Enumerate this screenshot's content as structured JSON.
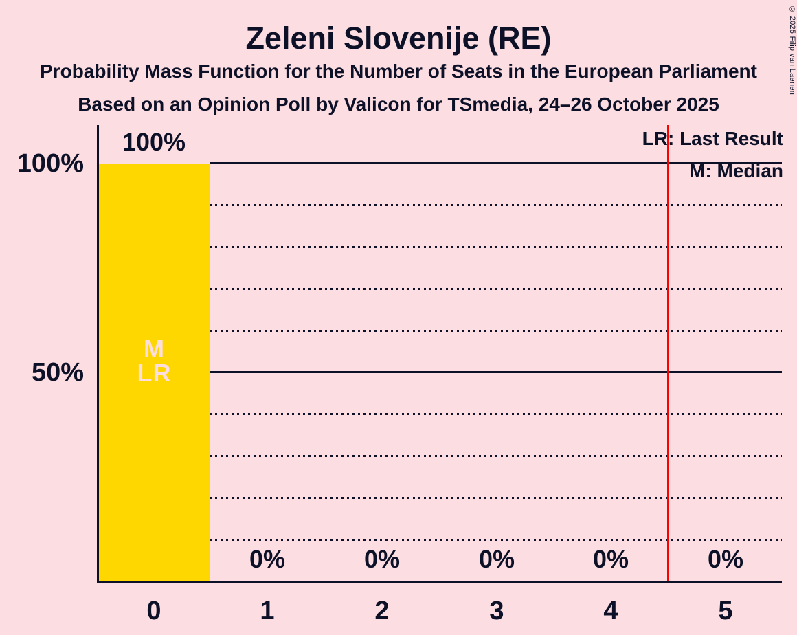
{
  "title": "Zeleni Slovenije (RE)",
  "subtitle_line1": "Probability Mass Function for the Number of Seats in the European Parliament",
  "subtitle_line2": "Based on an Opinion Poll by Valicon for TSmedia, 24–26 October 2025",
  "copyright": "© 2025 Filip van Laenen",
  "legend": {
    "last_result": "LR: Last Result",
    "median": "M: Median"
  },
  "y_axis": {
    "tick_labels": [
      "100%",
      "50%"
    ]
  },
  "bar_markers": {
    "median_label": "M",
    "last_result_label": "LR"
  },
  "colors": {
    "background": "#fcdee2",
    "bar": "#ffd700",
    "text": "#0d1127",
    "red_line": "#ff0000",
    "bar_marker_text": "#fcdee2"
  },
  "chart_data": {
    "type": "bar",
    "title": "Zeleni Slovenije (RE)",
    "categories": [
      "0",
      "1",
      "2",
      "3",
      "4",
      "5"
    ],
    "values": [
      100,
      0,
      0,
      0,
      0,
      0
    ],
    "value_labels": [
      "100%",
      "0%",
      "0%",
      "0%",
      "0%",
      "0%"
    ],
    "ylim": [
      0,
      100
    ],
    "y_tick_interval_pct": 10,
    "grid": "horizontal dotted every 10%, solid lines at 50% and 100%",
    "legend_position": "top-right",
    "median_seats": 0,
    "last_result_seats": 0,
    "red_line_x": 4.5
  }
}
